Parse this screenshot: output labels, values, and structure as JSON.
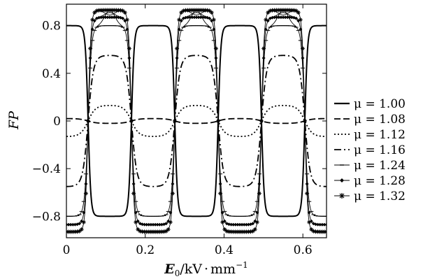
{
  "chart_data": {
    "type": "line",
    "ylabel": "FP",
    "xlabel": {
      "symbol": "E",
      "subscript": "0",
      "unit_prefix": "/kV",
      "unit_dot": "·",
      "unit_mm": "mm",
      "unit_exp": "−1"
    },
    "xlim": [
      0,
      0.66
    ],
    "ylim": [
      -0.98,
      0.98
    ],
    "xticks": [
      0,
      0.2,
      0.4,
      0.6
    ],
    "xtick_labels": [
      "0",
      "0.2",
      "0.4",
      "0.6"
    ],
    "yticks": [
      0.8,
      0.4,
      0,
      -0.4,
      -0.8
    ],
    "ytick_labels": [
      "0.8",
      "0.4",
      "0",
      "−0.4",
      "−0.8"
    ],
    "grid": false,
    "legend_position": "right",
    "period": 0.22,
    "series": [
      {
        "name": "μ = 1.00",
        "amplitude": 0.8,
        "sharpness": 5.0,
        "style": "solid",
        "marker": "none"
      },
      {
        "name": "μ = 1.08",
        "amplitude": 0.02,
        "sharpness": 1.5,
        "style": "dash",
        "marker": "none"
      },
      {
        "name": "μ = 1.12",
        "amplitude": -0.13,
        "sharpness": 1.8,
        "style": "dot",
        "marker": "none"
      },
      {
        "name": "μ = 1.16",
        "amplitude": -0.55,
        "sharpness": 2.6,
        "style": "dashdot",
        "marker": "none"
      },
      {
        "name": "μ = 1.24",
        "amplitude": -0.8,
        "sharpness": 4.0,
        "style": "solid-thin",
        "marker": "dash"
      },
      {
        "name": "μ = 1.28",
        "amplitude": -0.87,
        "sharpness": 4.5,
        "style": "solid-thin",
        "marker": "diamond"
      },
      {
        "name": "μ = 1.32",
        "amplitude": -0.93,
        "sharpness": 5.0,
        "style": "solid-thin",
        "marker": "star"
      }
    ],
    "peaks_note": "waveforms have period ~0.22 in E0; alternating extreme values at plateaus"
  }
}
